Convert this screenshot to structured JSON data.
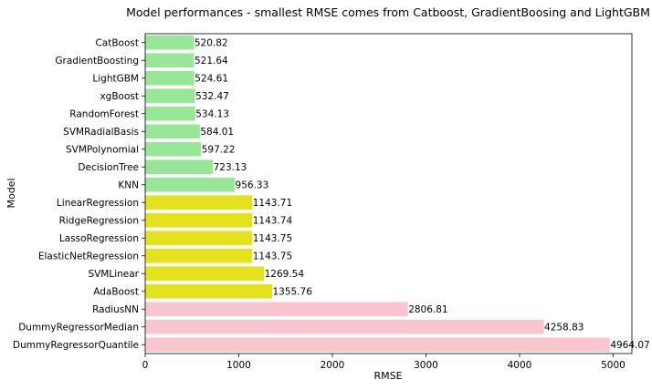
{
  "chart_data": {
    "type": "bar",
    "orientation": "horizontal",
    "title": "Model performances - smallest RMSE comes from Catboost, GradientBoosing and LightGBM",
    "xlabel": "RMSE",
    "ylabel": "Model",
    "xlim": [
      0,
      5200
    ],
    "xticks": [
      0,
      1000,
      2000,
      3000,
      4000,
      5000
    ],
    "grid": false,
    "legend": "none",
    "categories": [
      "CatBoost",
      "GradientBoosting",
      "LightGBM",
      "xgBoost",
      "RandomForest",
      "SVMRadialBasis",
      "SVMPolynomial",
      "DecisionTree",
      "KNN",
      "LinearRegression",
      "RidgeRegression",
      "LassoRegression",
      "ElasticNetRegression",
      "SVMLinear",
      "AdaBoost",
      "RadiusNN",
      "DummyRegressorMedian",
      "DummyRegressorQuantile"
    ],
    "values": [
      520.82,
      521.64,
      524.61,
      532.47,
      534.13,
      584.01,
      597.22,
      723.13,
      956.33,
      1143.71,
      1143.74,
      1143.75,
      1143.75,
      1269.54,
      1355.76,
      2806.81,
      4258.83,
      4964.07
    ],
    "value_labels": [
      "520.82",
      "521.64",
      "524.61",
      "532.47",
      "534.13",
      "584.01",
      "597.22",
      "723.13",
      "956.33",
      "1143.71",
      "1143.74",
      "1143.75",
      "1143.75",
      "1269.54",
      "1355.76",
      "2806.81",
      "4258.83",
      "4964.07"
    ],
    "colors": [
      "#98e698",
      "#98e698",
      "#98e698",
      "#98e698",
      "#98e698",
      "#98e698",
      "#98e698",
      "#98e698",
      "#98e698",
      "#e4e11d",
      "#e4e11d",
      "#e4e11d",
      "#e4e11d",
      "#e4e11d",
      "#e4e11d",
      "#f9c6cf",
      "#f9c6cf",
      "#f9c6cf"
    ]
  }
}
